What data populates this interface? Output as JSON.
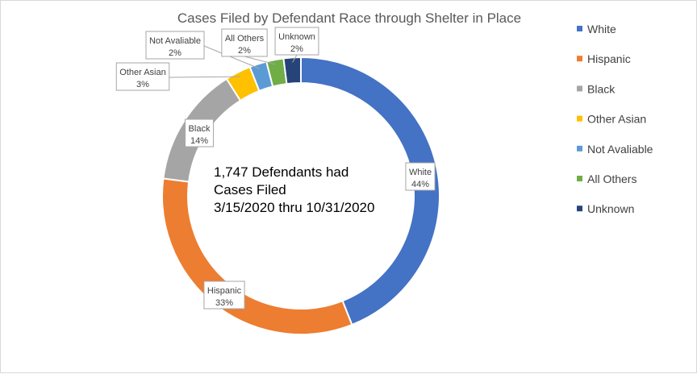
{
  "chart_data": {
    "type": "pie",
    "subtype": "doughnut",
    "title": "Cases Filed by Defendant Race through Shelter in Place",
    "center_text": [
      "1,747 Defendants had",
      "Cases Filed",
      "3/15/2020 thru 10/31/2020"
    ],
    "legend_position": "right",
    "series": [
      {
        "name": "White",
        "value": 44,
        "label": "44%",
        "color": "#4472C4"
      },
      {
        "name": "Hispanic",
        "value": 33,
        "label": "33%",
        "color": "#ED7D31"
      },
      {
        "name": "Black",
        "value": 14,
        "label": "14%",
        "color": "#A5A5A5"
      },
      {
        "name": "Other Asian",
        "value": 3,
        "label": "3%",
        "color": "#FFC000"
      },
      {
        "name": "Not Avaliable",
        "value": 2,
        "label": "2%",
        "color": "#5B9BD5"
      },
      {
        "name": "All Others",
        "value": 2,
        "label": "2%",
        "color": "#70AD47"
      },
      {
        "name": "Unknown",
        "value": 2,
        "label": "2%",
        "color": "#264478"
      }
    ]
  }
}
